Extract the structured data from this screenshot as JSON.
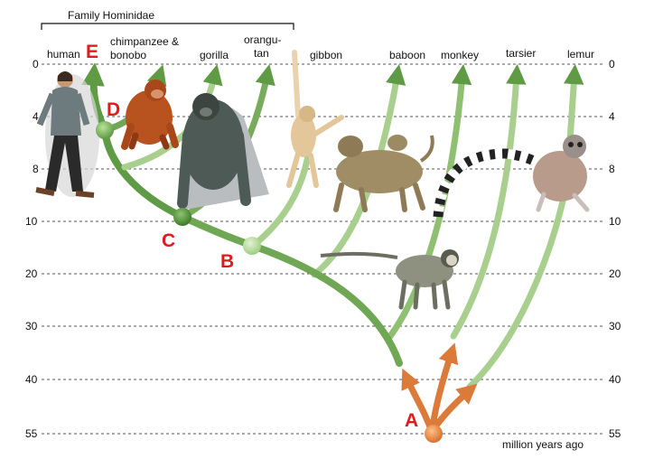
{
  "bracket_label": "Family Hominidae",
  "species": {
    "human": "human",
    "chimp_line1": "chimpanzee &",
    "chimp_line2": "bonobo",
    "gorilla": "gorilla",
    "orang_line1": "orangu-",
    "orang_line2": "tan",
    "gibbon": "gibbon",
    "baboon": "baboon",
    "monkey": "monkey",
    "tarsier": "tarsier",
    "lemur": "lemur"
  },
  "time_axis": {
    "ticks": [
      "0",
      "4",
      "8",
      "10",
      "20",
      "30",
      "40",
      "55"
    ],
    "unit_label": "million years ago"
  },
  "nodes": {
    "A": "A",
    "B": "B",
    "C": "C",
    "D": "D",
    "E": "E"
  },
  "colors": {
    "dark_green": "#5f9a45",
    "mid_green": "#78ab5c",
    "light_green": "#a9cf8f",
    "orange": "#dc7a3a",
    "node_letter": "#e01b1b"
  }
}
